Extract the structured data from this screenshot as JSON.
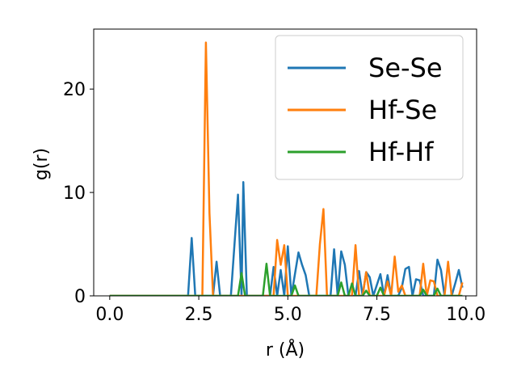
{
  "chart_data": {
    "type": "line",
    "xlabel": "r (Å)",
    "ylabel": "g(r)",
    "xlim": [
      -0.45,
      10.3
    ],
    "ylim": [
      0,
      25.8
    ],
    "x_ticks": [
      {
        "value": 0.0,
        "label": "0.0"
      },
      {
        "value": 2.5,
        "label": "2.5"
      },
      {
        "value": 5.0,
        "label": "5.0"
      },
      {
        "value": 7.5,
        "label": "7.5"
      },
      {
        "value": 10.0,
        "label": "10.0"
      }
    ],
    "y_ticks": [
      {
        "value": 0,
        "label": "0"
      },
      {
        "value": 10,
        "label": "10"
      },
      {
        "value": 20,
        "label": "20"
      }
    ],
    "grid": false,
    "legend_position": "top-right",
    "series": [
      {
        "name": "Se-Se",
        "color": "#1f77b4",
        "points": [
          [
            0.0,
            0
          ],
          [
            2.2,
            0
          ],
          [
            2.3,
            5.6
          ],
          [
            2.4,
            0
          ],
          [
            2.9,
            0
          ],
          [
            3.0,
            3.3
          ],
          [
            3.1,
            0
          ],
          [
            3.4,
            0
          ],
          [
            3.6,
            9.8
          ],
          [
            3.7,
            0
          ],
          [
            3.75,
            11.0
          ],
          [
            3.85,
            0
          ],
          [
            4.5,
            0
          ],
          [
            4.6,
            2.8
          ],
          [
            4.7,
            0
          ],
          [
            4.8,
            2.5
          ],
          [
            4.9,
            0
          ],
          [
            5.0,
            4.8
          ],
          [
            5.1,
            0
          ],
          [
            5.3,
            4.2
          ],
          [
            5.4,
            3.0
          ],
          [
            5.5,
            2.0
          ],
          [
            5.6,
            0
          ],
          [
            6.2,
            0
          ],
          [
            6.3,
            4.5
          ],
          [
            6.4,
            0
          ],
          [
            6.5,
            4.3
          ],
          [
            6.6,
            3.0
          ],
          [
            6.7,
            0
          ],
          [
            6.9,
            0
          ],
          [
            7.0,
            2.4
          ],
          [
            7.1,
            0
          ],
          [
            7.2,
            2.3
          ],
          [
            7.3,
            1.8
          ],
          [
            7.4,
            0
          ],
          [
            7.6,
            2.1
          ],
          [
            7.7,
            0
          ],
          [
            7.8,
            2.0
          ],
          [
            7.9,
            0
          ],
          [
            8.1,
            0
          ],
          [
            8.2,
            0.8
          ],
          [
            8.3,
            2.6
          ],
          [
            8.4,
            2.8
          ],
          [
            8.5,
            0
          ],
          [
            8.6,
            1.6
          ],
          [
            8.7,
            1.5
          ],
          [
            8.8,
            0
          ],
          [
            9.1,
            0
          ],
          [
            9.2,
            3.5
          ],
          [
            9.3,
            2.5
          ],
          [
            9.4,
            0
          ],
          [
            9.6,
            0
          ],
          [
            9.7,
            1.2
          ],
          [
            9.8,
            2.5
          ],
          [
            9.9,
            0.8
          ]
        ]
      },
      {
        "name": "Hf-Se",
        "color": "#ff7f0e",
        "points": [
          [
            0.0,
            0
          ],
          [
            2.6,
            0
          ],
          [
            2.7,
            24.5
          ],
          [
            2.8,
            8.0
          ],
          [
            2.9,
            0
          ],
          [
            4.6,
            0
          ],
          [
            4.7,
            5.4
          ],
          [
            4.8,
            3.0
          ],
          [
            4.9,
            4.9
          ],
          [
            5.0,
            0
          ],
          [
            5.8,
            0
          ],
          [
            5.9,
            5.0
          ],
          [
            6.0,
            8.4
          ],
          [
            6.1,
            0
          ],
          [
            6.8,
            0
          ],
          [
            6.9,
            4.9
          ],
          [
            7.0,
            0
          ],
          [
            7.1,
            0
          ],
          [
            7.2,
            2.3
          ],
          [
            7.3,
            0
          ],
          [
            7.7,
            0
          ],
          [
            7.8,
            1.4
          ],
          [
            7.9,
            0
          ],
          [
            8.0,
            3.8
          ],
          [
            8.1,
            0.4
          ],
          [
            8.2,
            1.0
          ],
          [
            8.3,
            0
          ],
          [
            8.7,
            0
          ],
          [
            8.8,
            3.1
          ],
          [
            8.9,
            0
          ],
          [
            9.0,
            1.5
          ],
          [
            9.1,
            1.4
          ],
          [
            9.2,
            0
          ],
          [
            9.4,
            0
          ],
          [
            9.5,
            3.3
          ],
          [
            9.6,
            0
          ],
          [
            9.8,
            0
          ],
          [
            9.9,
            1.3
          ]
        ]
      },
      {
        "name": "Hf-Hf",
        "color": "#2ca02c",
        "points": [
          [
            0.0,
            0
          ],
          [
            3.6,
            0
          ],
          [
            3.7,
            2.2
          ],
          [
            3.8,
            0
          ],
          [
            4.3,
            0
          ],
          [
            4.4,
            3.1
          ],
          [
            4.5,
            0
          ],
          [
            5.1,
            0
          ],
          [
            5.2,
            1.0
          ],
          [
            5.3,
            0
          ],
          [
            6.4,
            0
          ],
          [
            6.5,
            1.3
          ],
          [
            6.6,
            0
          ],
          [
            6.7,
            0
          ],
          [
            6.8,
            1.2
          ],
          [
            6.9,
            0
          ],
          [
            7.1,
            0
          ],
          [
            7.2,
            0.5
          ],
          [
            7.3,
            0
          ],
          [
            7.5,
            0
          ],
          [
            7.6,
            0.8
          ],
          [
            7.7,
            0
          ],
          [
            8.7,
            0
          ],
          [
            8.8,
            0.6
          ],
          [
            8.9,
            0
          ],
          [
            9.1,
            0
          ],
          [
            9.2,
            0.7
          ],
          [
            9.3,
            0
          ],
          [
            9.9,
            0
          ]
        ]
      }
    ]
  }
}
